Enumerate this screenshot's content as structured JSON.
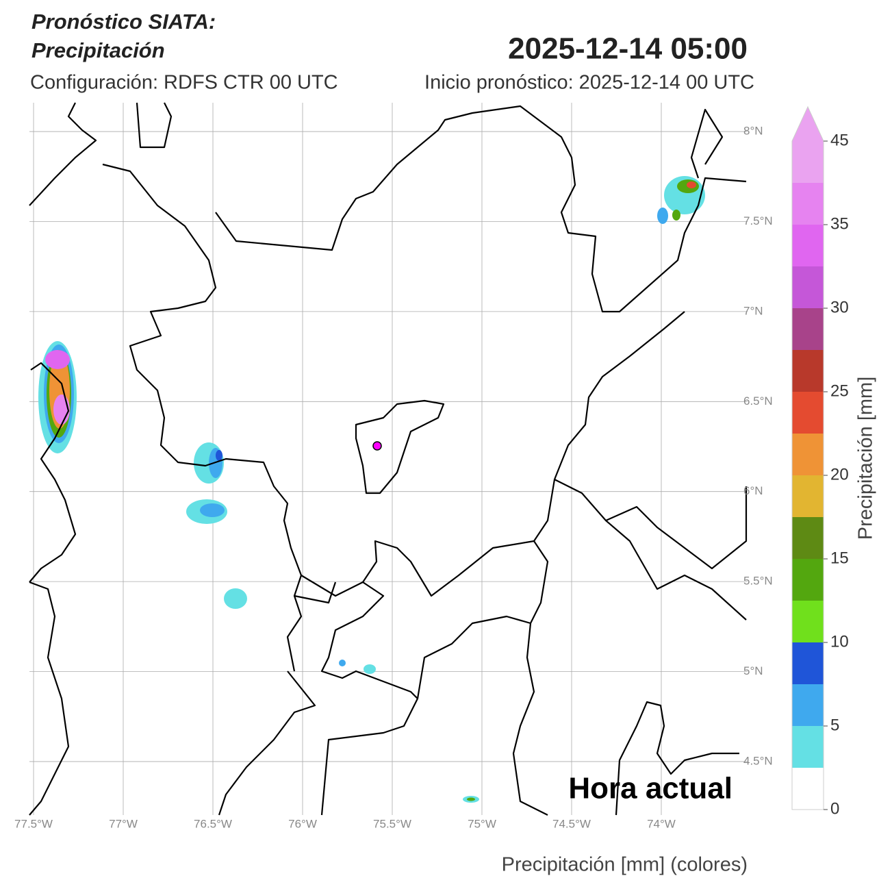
{
  "chart_data": {
    "type": "map",
    "title": [
      "Pronóstico SIATA:",
      "Precipitación"
    ],
    "date": "2025-12-14 05:00",
    "config": "Configuración: RDFS CTR 00 UTC",
    "start": "Inicio pronóstico: 2025-12-14 00 UTC",
    "annotation": "Hora actual",
    "xlabel": "Precipitación [mm] (colores)",
    "xlim": [
      -77.523,
      -73.519
    ],
    "ylim": [
      4.203,
      8.16
    ],
    "xticks": [
      {
        "value": -77.5,
        "label": "77.5°W"
      },
      {
        "value": -77,
        "label": "77°W"
      },
      {
        "value": -76.5,
        "label": "76.5°W"
      },
      {
        "value": -76,
        "label": "76°W"
      },
      {
        "value": -75.5,
        "label": "75.5°W"
      },
      {
        "value": -75,
        "label": "75°W"
      },
      {
        "value": -74.5,
        "label": "74.5°W"
      },
      {
        "value": -74,
        "label": "74°W"
      }
    ],
    "yticks": [
      {
        "value": 4.5,
        "label": "4.5°N"
      },
      {
        "value": 5,
        "label": "5°N"
      },
      {
        "value": 5.5,
        "label": "5.5°N"
      },
      {
        "value": 6,
        "label": "6°N"
      },
      {
        "value": 6.5,
        "label": "6.5°N"
      },
      {
        "value": 7,
        "label": "7°N"
      },
      {
        "value": 7.5,
        "label": "7.5°N"
      },
      {
        "value": 8,
        "label": "8°N"
      }
    ],
    "grid": true,
    "colorbar": {
      "label": "Precipitación [mm]",
      "levels": [
        0,
        2.5,
        5,
        7.5,
        10,
        12.5,
        15,
        17.5,
        20,
        22.5,
        25,
        27.5,
        30,
        32.5,
        35,
        40,
        45
      ],
      "colors": [
        "#ffffff",
        "#64e0e4",
        "#3fa9ee",
        "#1f55d8",
        "#70e01c",
        "#53a70f",
        "#5e8a14",
        "#e2b531",
        "#ef9336",
        "#e44b30",
        "#b8392b",
        "#a8438a",
        "#c557d8",
        "#e066f0",
        "#e683f0",
        "#eaa3f0"
      ],
      "ticks": [
        0,
        5,
        10,
        15,
        20,
        25,
        30,
        35,
        45
      ]
    }
  }
}
